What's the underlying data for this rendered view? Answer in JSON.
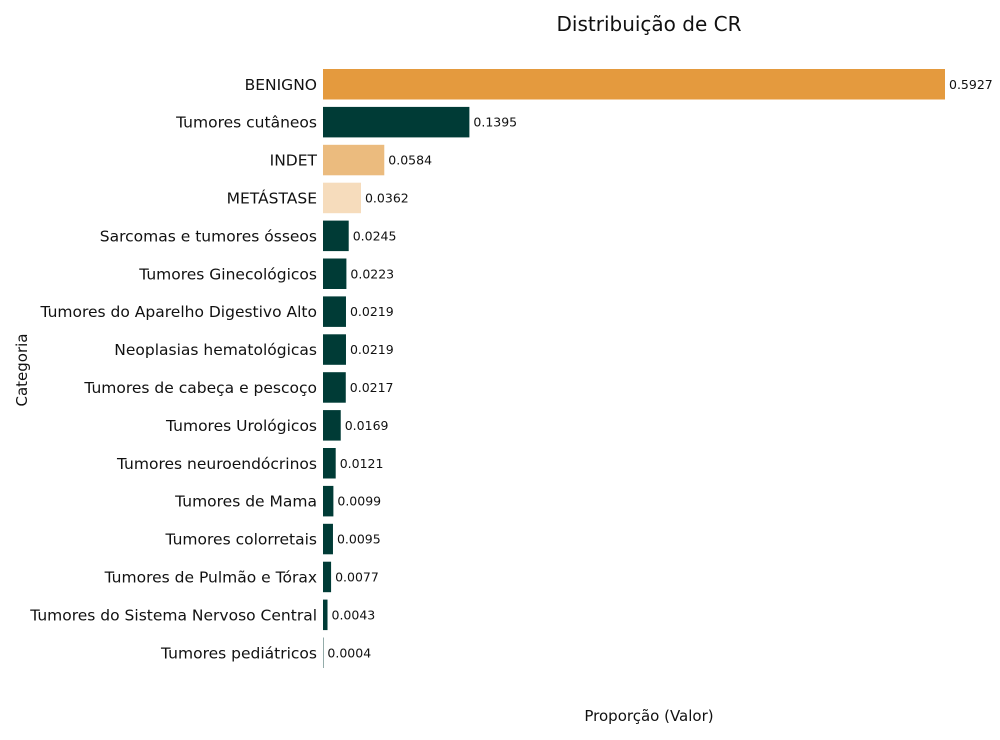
{
  "chart_data": {
    "type": "bar",
    "orientation": "horizontal",
    "title": "Distribuição de CR",
    "xlabel": "Proporção (Valor)",
    "ylabel": "Categoria",
    "grid": false,
    "categories": [
      "BENIGNO",
      "Tumores cutâneos",
      "INDET",
      "METÁSTASE",
      "Sarcomas e tumores ósseos",
      "Tumores Ginecológicos",
      "Tumores do Aparelho Digestivo Alto",
      "Neoplasias hematológicas",
      "Tumores de cabeça e pescoço",
      "Tumores Urológicos",
      "Tumores neuroendócrinos",
      "Tumores de Mama",
      "Tumores colorretais",
      "Tumores de Pulmão e Tórax",
      "Tumores do Sistema Nervoso Central",
      "Tumores pediátricos"
    ],
    "values": [
      0.5927,
      0.1395,
      0.0584,
      0.0362,
      0.0245,
      0.0223,
      0.0219,
      0.0219,
      0.0217,
      0.0169,
      0.0121,
      0.0099,
      0.0095,
      0.0077,
      0.0043,
      0.0004
    ],
    "value_labels": [
      "0.5927",
      "0.1395",
      "0.0584",
      "0.0362",
      "0.0245",
      "0.0223",
      "0.0219",
      "0.0219",
      "0.0217",
      "0.0169",
      "0.0121",
      "0.0099",
      "0.0095",
      "0.0077",
      "0.0043",
      "0.0004"
    ],
    "colors": [
      "#E49A3E",
      "#003B36",
      "#EBBB7E",
      "#F6DCBC",
      "#003B36",
      "#003B36",
      "#003B36",
      "#003B36",
      "#003B36",
      "#003B36",
      "#003B36",
      "#003B36",
      "#003B36",
      "#003B36",
      "#003B36",
      "#003B36"
    ],
    "xlim": [
      0,
      0.5927
    ]
  }
}
